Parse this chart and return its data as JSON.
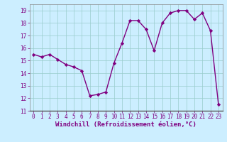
{
  "x": [
    0,
    1,
    2,
    3,
    4,
    5,
    6,
    7,
    8,
    9,
    10,
    11,
    12,
    13,
    14,
    15,
    16,
    17,
    18,
    19,
    20,
    21,
    22,
    23
  ],
  "y": [
    15.5,
    15.3,
    15.5,
    15.1,
    14.7,
    14.5,
    14.2,
    12.2,
    12.3,
    12.5,
    14.8,
    16.4,
    18.2,
    18.2,
    17.5,
    15.8,
    18.0,
    18.8,
    19.0,
    19.0,
    18.3,
    18.8,
    17.4,
    11.5
  ],
  "line_color": "#800080",
  "marker": "D",
  "marker_size": 2.2,
  "bg_color": "#cceeff",
  "grid_color": "#99cccc",
  "xlabel": "Windchill (Refroidissement éolien,°C)",
  "ylim": [
    11,
    19.5
  ],
  "xlim": [
    -0.5,
    23.5
  ],
  "yticks": [
    11,
    12,
    13,
    14,
    15,
    16,
    17,
    18,
    19
  ],
  "xticks": [
    0,
    1,
    2,
    3,
    4,
    5,
    6,
    7,
    8,
    9,
    10,
    11,
    12,
    13,
    14,
    15,
    16,
    17,
    18,
    19,
    20,
    21,
    22,
    23
  ],
  "tick_color": "#800080",
  "tick_fontsize": 5.5,
  "xlabel_fontsize": 6.5,
  "line_width": 1.0,
  "spine_color": "#888888"
}
